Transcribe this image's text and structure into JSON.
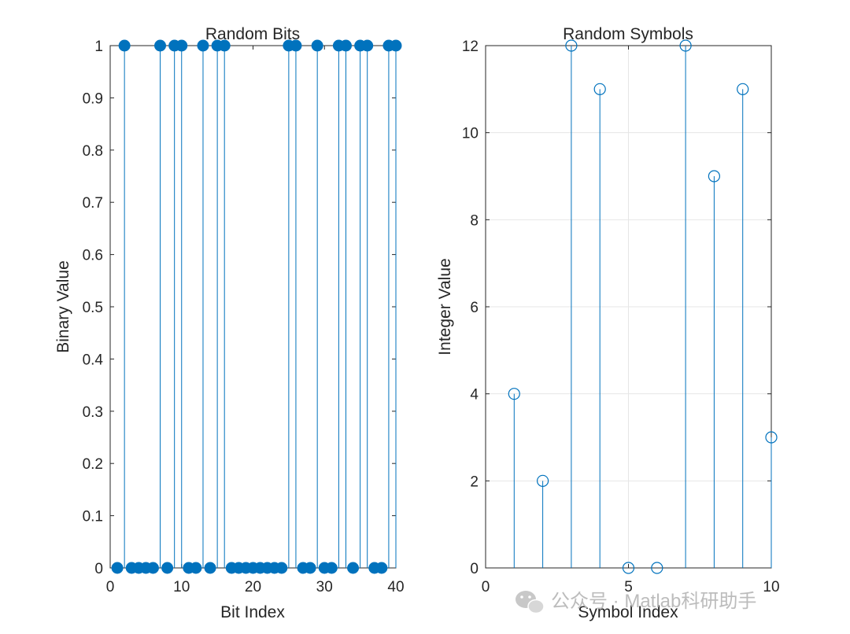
{
  "chart_data": [
    {
      "type": "stem",
      "title": "Random Bits",
      "xlabel": "Bit Index",
      "ylabel": "Binary Value",
      "xlim": [
        0,
        40
      ],
      "ylim": [
        0,
        1
      ],
      "xticks": [
        0,
        10,
        20,
        30,
        40
      ],
      "xtick_labels": [
        "0",
        "10",
        "20",
        "30",
        "40"
      ],
      "yticks": [
        0,
        0.1,
        0.2,
        0.3,
        0.4,
        0.5,
        0.6,
        0.7,
        0.8,
        0.9,
        1
      ],
      "ytick_labels": [
        "0",
        "0.1",
        "0.2",
        "0.3",
        "0.4",
        "0.5",
        "0.6",
        "0.7",
        "0.8",
        "0.9",
        "1"
      ],
      "grid": false,
      "marker": "filled-circle",
      "color": "#0072BD",
      "x": [
        1,
        2,
        3,
        4,
        5,
        6,
        7,
        8,
        9,
        10,
        11,
        12,
        13,
        14,
        15,
        16,
        17,
        18,
        19,
        20,
        21,
        22,
        23,
        24,
        25,
        26,
        27,
        28,
        29,
        30,
        31,
        32,
        33,
        34,
        35,
        36,
        37,
        38,
        39,
        40
      ],
      "values": [
        0,
        1,
        0,
        0,
        0,
        0,
        1,
        0,
        1,
        1,
        0,
        0,
        1,
        0,
        1,
        1,
        0,
        0,
        0,
        0,
        0,
        0,
        0,
        0,
        1,
        1,
        0,
        0,
        1,
        0,
        0,
        1,
        1,
        0,
        1,
        1,
        0,
        0,
        1,
        1
      ]
    },
    {
      "type": "stem",
      "title": "Random Symbols",
      "xlabel": "Symbol Index",
      "ylabel": "Integer Value",
      "xlim": [
        0,
        10
      ],
      "ylim": [
        0,
        12
      ],
      "xticks": [
        0,
        5,
        10
      ],
      "xtick_labels": [
        "0",
        "5",
        "10"
      ],
      "yticks": [
        0,
        2,
        4,
        6,
        8,
        10,
        12
      ],
      "ytick_labels": [
        "0",
        "2",
        "4",
        "6",
        "8",
        "10",
        "12"
      ],
      "grid": true,
      "marker": "open-circle",
      "color": "#0072BD",
      "x": [
        1,
        2,
        3,
        4,
        5,
        6,
        7,
        8,
        9,
        10
      ],
      "values": [
        4,
        2,
        12,
        11,
        0,
        0,
        12,
        9,
        11,
        3
      ]
    }
  ],
  "watermark": {
    "text": "公众号 · Matlab科研助手",
    "icon": "wechat-icon"
  }
}
